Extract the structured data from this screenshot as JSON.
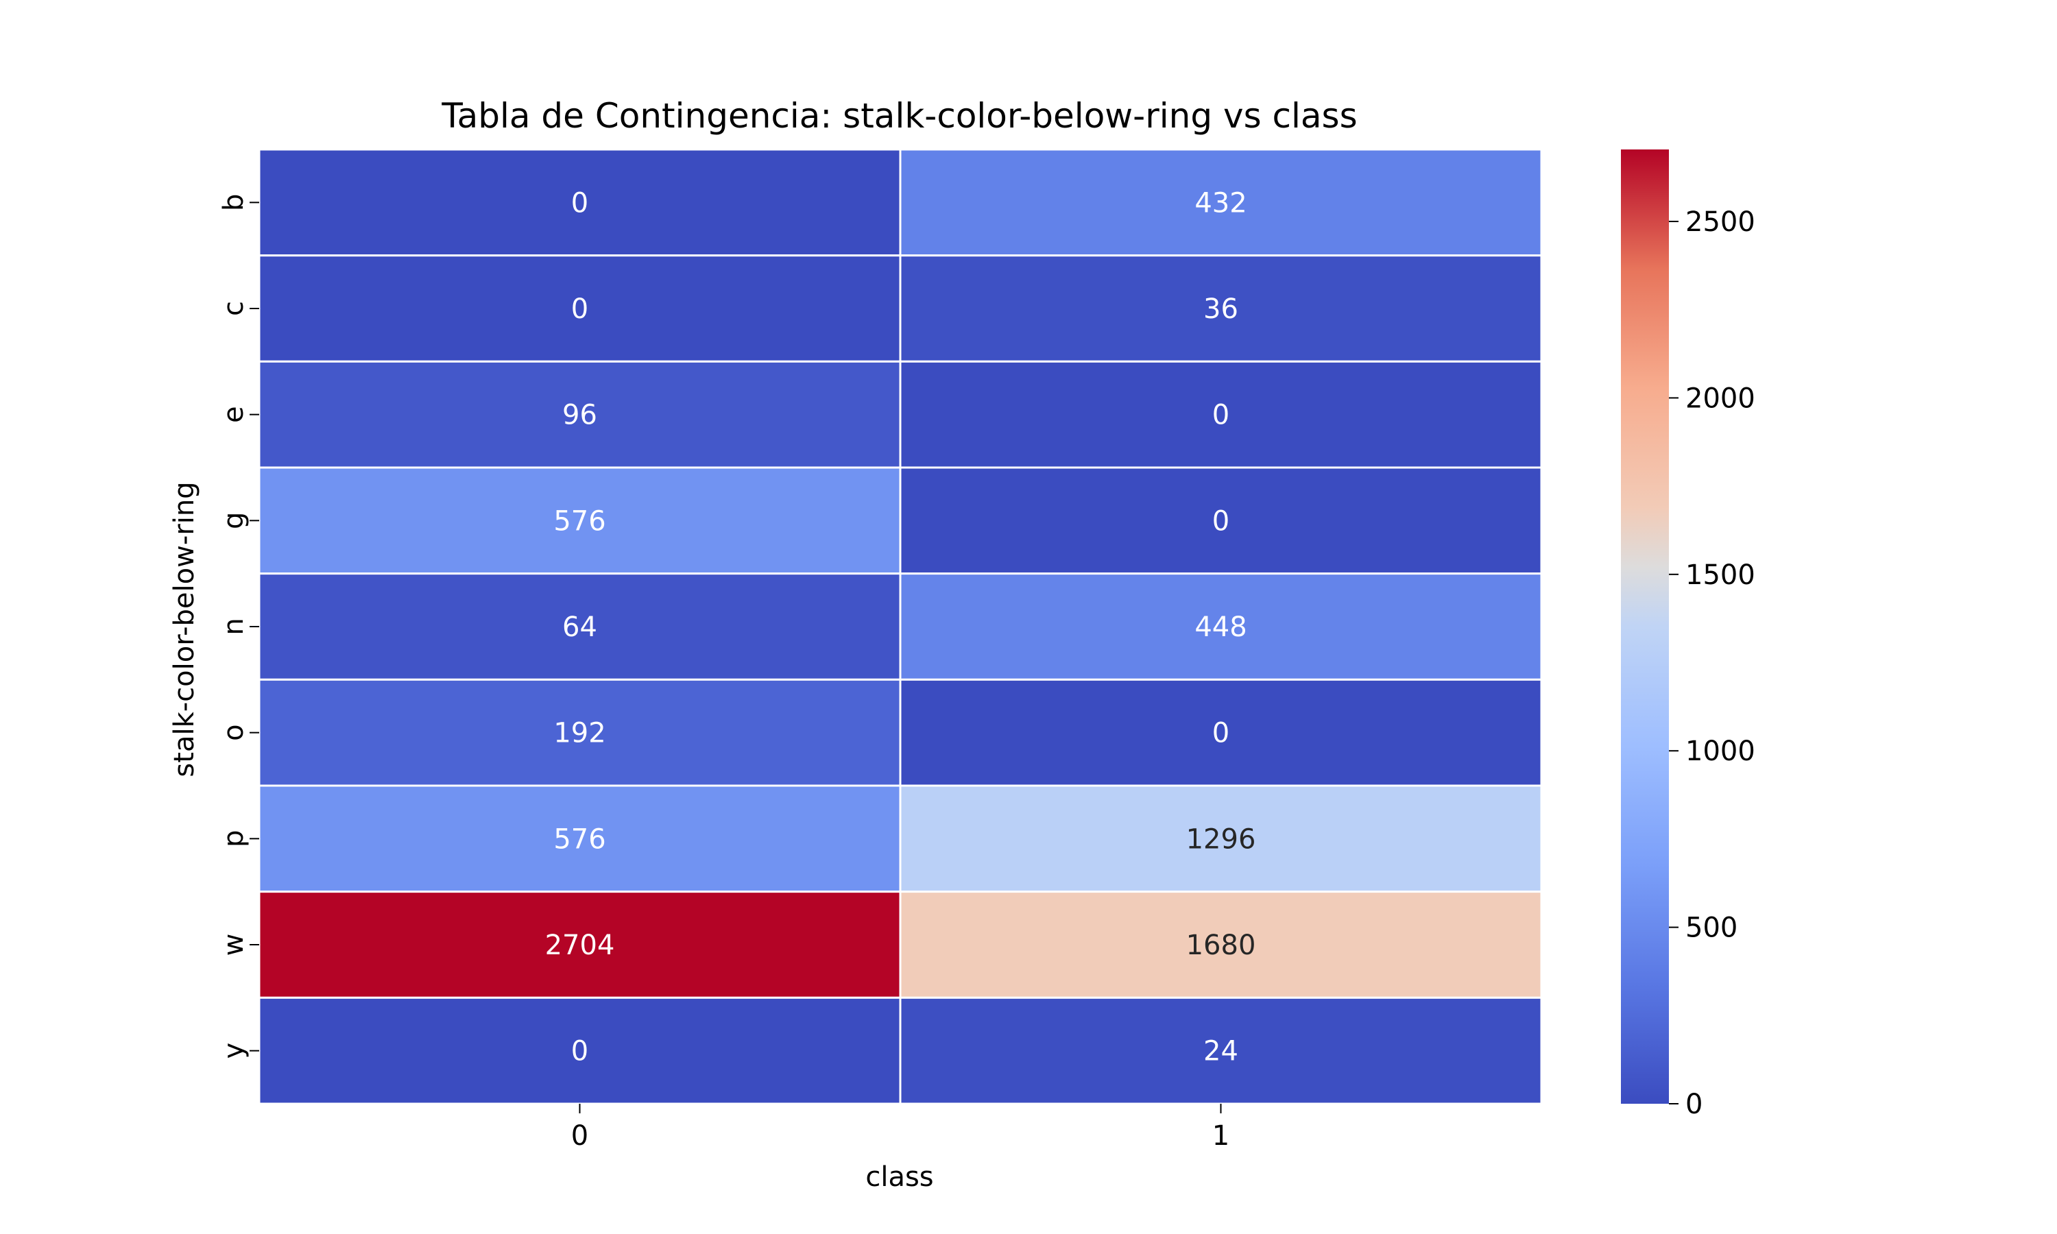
{
  "chart_data": {
    "type": "heatmap",
    "title": "Tabla de Contingencia: stalk-color-below-ring vs class",
    "xlabel": "class",
    "ylabel": "stalk-color-below-ring",
    "x_categories": [
      "0",
      "1"
    ],
    "y_categories": [
      "b",
      "c",
      "e",
      "g",
      "n",
      "o",
      "p",
      "w",
      "y"
    ],
    "values": [
      [
        0,
        432
      ],
      [
        0,
        36
      ],
      [
        96,
        0
      ],
      [
        576,
        0
      ],
      [
        64,
        448
      ],
      [
        192,
        0
      ],
      [
        576,
        1296
      ],
      [
        2704,
        1680
      ],
      [
        0,
        24
      ]
    ],
    "colormap": "coolwarm",
    "colorbar": {
      "min": 0,
      "max": 2704,
      "ticks": [
        0,
        500,
        1000,
        1500,
        2000,
        2500
      ]
    },
    "annotations": true,
    "cell_border_color": "#ffffff"
  }
}
